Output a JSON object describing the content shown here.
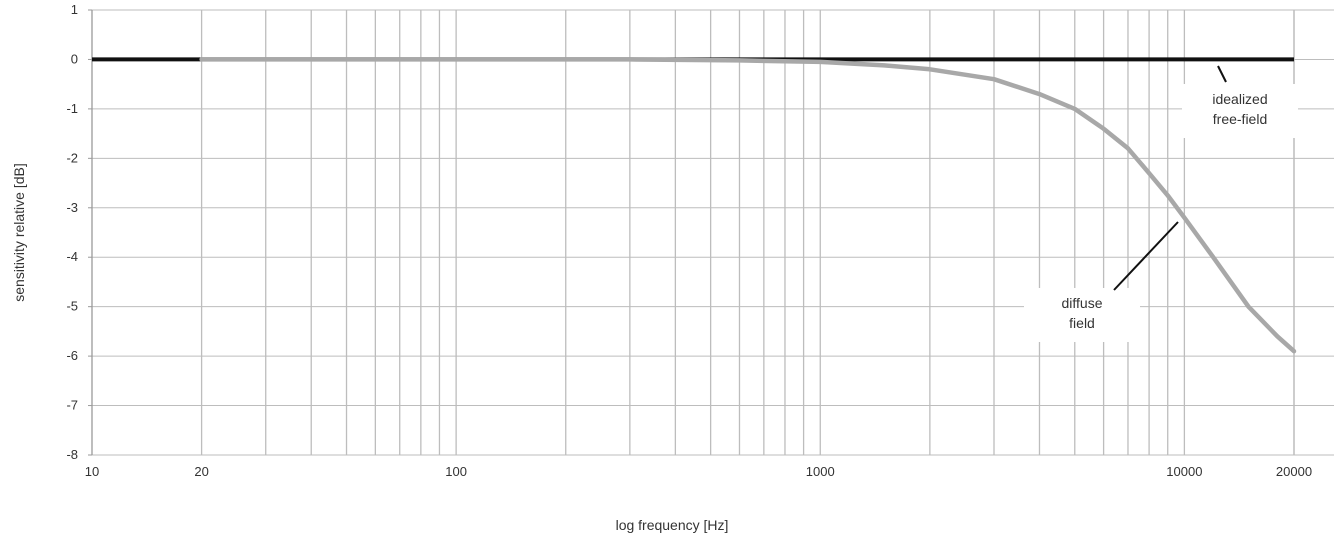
{
  "chart_data": {
    "type": "line",
    "xscale": "log",
    "xlim": [
      10,
      20000
    ],
    "ylim": [
      -8,
      1
    ],
    "grid": true,
    "xlabel": "log frequency [Hz]",
    "ylabel": "sensitivity relative [dB]",
    "x_tick_labels": [
      "10",
      "20",
      "100",
      "1000",
      "10000",
      "20000"
    ],
    "x_tick_values": [
      10,
      20,
      100,
      1000,
      10000,
      20000
    ],
    "y_tick_labels": [
      "1",
      "0",
      "-1",
      "-2",
      "-3",
      "-4",
      "-5",
      "-6",
      "-7",
      "-8"
    ],
    "y_tick_values": [
      1,
      0,
      -1,
      -2,
      -3,
      -4,
      -5,
      -6,
      -7,
      -8
    ],
    "series": [
      {
        "name": "idealized free-field",
        "color": "#111111",
        "x": [
          10,
          20000
        ],
        "y": [
          0,
          0
        ]
      },
      {
        "name": "diffuse field",
        "color": "#a8a8a8",
        "x": [
          20,
          100,
          300,
          600,
          1000,
          1500,
          2000,
          3000,
          4000,
          5000,
          6000,
          7000,
          8000,
          9000,
          10000,
          12000,
          15000,
          18000,
          20000
        ],
        "y": [
          0,
          0,
          0,
          -0.02,
          -0.05,
          -0.12,
          -0.2,
          -0.4,
          -0.7,
          -1.0,
          -1.4,
          -1.8,
          -2.3,
          -2.75,
          -3.2,
          -4.0,
          -5.0,
          -5.6,
          -5.9
        ]
      }
    ],
    "annotations": [
      {
        "lines": [
          "idealized",
          "free-field"
        ],
        "target": "idealized free-field"
      },
      {
        "lines": [
          "diffuse",
          "field"
        ],
        "target": "diffuse field"
      }
    ]
  }
}
